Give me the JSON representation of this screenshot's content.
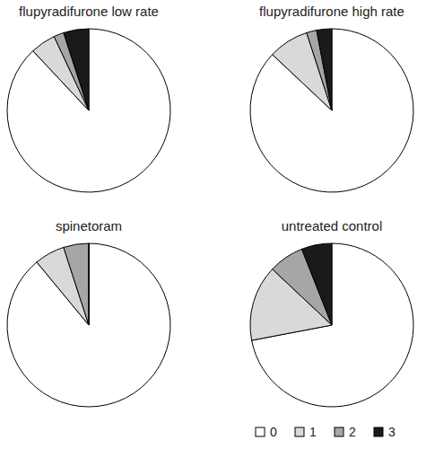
{
  "chart_data": [
    {
      "type": "pie",
      "title": "flupyradifurone low rate",
      "categories": [
        "0",
        "1",
        "2",
        "3"
      ],
      "values": [
        88,
        5,
        2,
        5
      ],
      "colors": [
        "#ffffff",
        "#d9d9d9",
        "#a6a6a6",
        "#1a1a1a"
      ]
    },
    {
      "type": "pie",
      "title": "flupyradifurone high rate",
      "categories": [
        "0",
        "1",
        "2",
        "3"
      ],
      "values": [
        87,
        8,
        2,
        3
      ],
      "colors": [
        "#ffffff",
        "#d9d9d9",
        "#a6a6a6",
        "#1a1a1a"
      ]
    },
    {
      "type": "pie",
      "title": "spinetoram",
      "categories": [
        "0",
        "1",
        "2",
        "3"
      ],
      "values": [
        89,
        6,
        5,
        0
      ],
      "colors": [
        "#ffffff",
        "#d9d9d9",
        "#a6a6a6",
        "#1a1a1a"
      ]
    },
    {
      "type": "pie",
      "title": "untreated control",
      "categories": [
        "0",
        "1",
        "2",
        "3"
      ],
      "values": [
        72,
        15,
        7,
        6
      ],
      "colors": [
        "#ffffff",
        "#d9d9d9",
        "#a6a6a6",
        "#1a1a1a"
      ],
      "legend": "lower right"
    }
  ]
}
